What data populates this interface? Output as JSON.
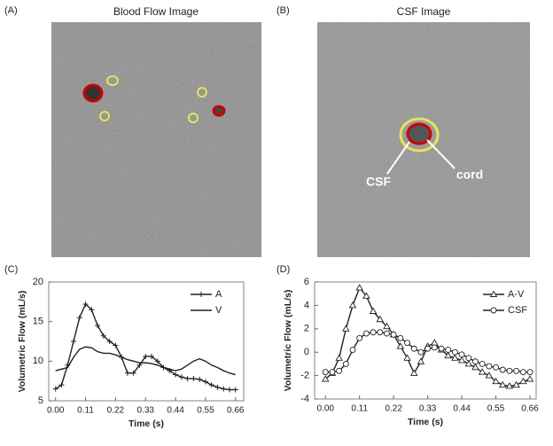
{
  "images": [
    {
      "panel_label": "(A)",
      "title": "Blood Flow Image"
    },
    {
      "panel_label": "(B)",
      "title": "CSF Image",
      "annotations": [
        "CSF",
        "cord"
      ]
    }
  ],
  "chart_data": [
    {
      "type": "line",
      "panel_label": "(C)",
      "x_label": "Time (s)",
      "y_label": "Volumetric Flow (mL/s)",
      "x": [
        0,
        0.022,
        0.044,
        0.066,
        0.088,
        0.11,
        0.132,
        0.154,
        0.176,
        0.198,
        0.22,
        0.242,
        0.264,
        0.286,
        0.308,
        0.33,
        0.352,
        0.374,
        0.396,
        0.418,
        0.44,
        0.462,
        0.484,
        0.506,
        0.528,
        0.55,
        0.572,
        0.594,
        0.616,
        0.638,
        0.66
      ],
      "series": [
        {
          "name": "A",
          "color": "#222222",
          "marker": "plus",
          "values": [
            6.5,
            7,
            9.5,
            12.5,
            15.5,
            17.2,
            16.5,
            14.5,
            13.2,
            12.5,
            12,
            10.5,
            8.5,
            8.5,
            9.5,
            10.6,
            10.6,
            10,
            9.2,
            8.8,
            8.3,
            8,
            7.8,
            7.8,
            7.7,
            7.4,
            7,
            6.7,
            6.5,
            6.4,
            6.4
          ]
        },
        {
          "name": "V",
          "color": "#222222",
          "marker": "none",
          "values": [
            8.8,
            9,
            9.2,
            10.5,
            11.5,
            11.8,
            11.7,
            11.2,
            11,
            11,
            10.8,
            10.5,
            10.2,
            10,
            9.8,
            9.8,
            9.7,
            9.5,
            9.2,
            9,
            8.8,
            9,
            9.5,
            10,
            10.3,
            10,
            9.5,
            9.2,
            8.8,
            8.5,
            8.3
          ]
        }
      ],
      "xlim": [
        -0.025,
        0.69
      ],
      "xticks": [
        {
          "value": 0,
          "label": "0.00"
        },
        0.11,
        0.22,
        0.33,
        0.44,
        0.55,
        0.66
      ],
      "ylim": [
        5,
        20
      ],
      "yticks": [
        5,
        10,
        15,
        20
      ],
      "grid": false,
      "legend": "top-right"
    },
    {
      "type": "line",
      "panel_label": "(D)",
      "x_label": "Time (s)",
      "y_label": "Volumetric Flow (mL/s)",
      "x": [
        0,
        0.022,
        0.044,
        0.066,
        0.088,
        0.11,
        0.132,
        0.154,
        0.176,
        0.198,
        0.22,
        0.242,
        0.264,
        0.286,
        0.308,
        0.33,
        0.352,
        0.374,
        0.396,
        0.418,
        0.44,
        0.462,
        0.484,
        0.506,
        0.528,
        0.55,
        0.572,
        0.594,
        0.616,
        0.638,
        0.66
      ],
      "series": [
        {
          "name": "A-V",
          "color": "#222222",
          "marker": "triangle",
          "values": [
            -2.3,
            -1.8,
            -0.5,
            2,
            4,
            5.5,
            4.8,
            3.5,
            2.8,
            2.2,
            1.5,
            0.5,
            -0.5,
            -1.8,
            -0.8,
            0.5,
            0.8,
            0.2,
            -0.3,
            -0.5,
            -0.7,
            -1,
            -1.3,
            -1.7,
            -2,
            -2.5,
            -2.8,
            -2.9,
            -2.8,
            -2.5,
            -2.3
          ]
        },
        {
          "name": "CSF",
          "color": "#222222",
          "marker": "circle",
          "values": [
            -1.7,
            -1.7,
            -1.6,
            -1,
            0.2,
            1.2,
            1.6,
            1.7,
            1.7,
            1.6,
            1.5,
            1.2,
            0.8,
            0.3,
            0,
            0.3,
            0.4,
            0.3,
            0.2,
            0,
            -0.2,
            -0.5,
            -0.8,
            -1,
            -1.2,
            -1.3,
            -1.5,
            -1.6,
            -1.6,
            -1.7,
            -1.7
          ]
        }
      ],
      "xlim": [
        -0.035,
        0.68
      ],
      "xticks": [
        {
          "value": 0,
          "label": "0.00"
        },
        0.11,
        0.22,
        0.33,
        0.44,
        0.55,
        0.66
      ],
      "ylim": [
        -4,
        6
      ],
      "yticks": [
        -4,
        -2,
        0,
        2,
        4,
        6
      ],
      "grid": false,
      "legend": "top-right"
    }
  ]
}
